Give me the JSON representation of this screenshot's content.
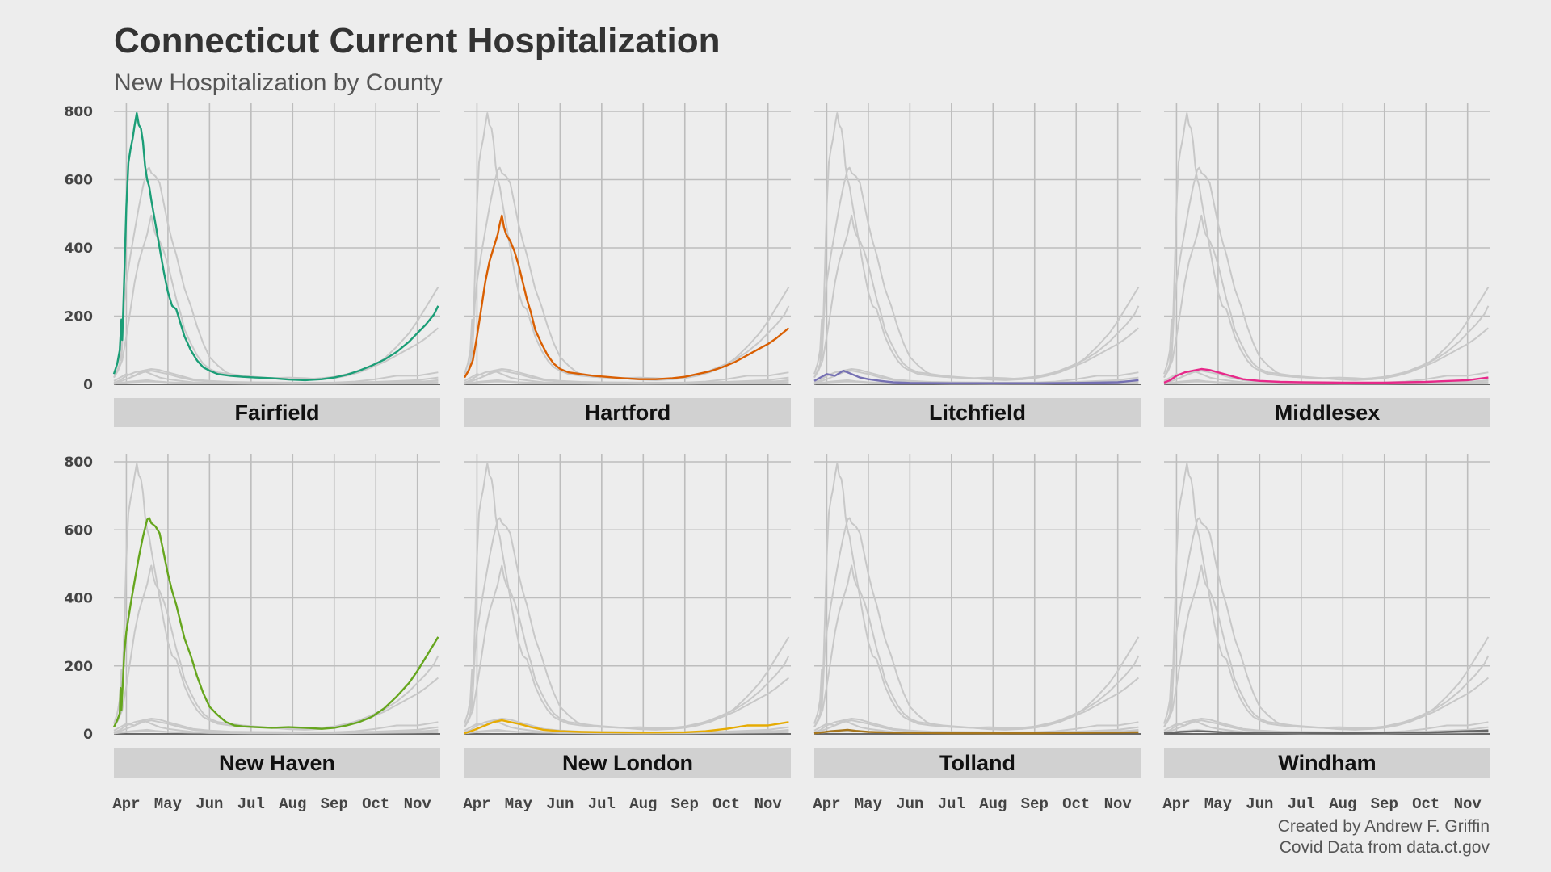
{
  "chart_data": {
    "type": "line",
    "title": "Connecticut Current Hospitalization",
    "subtitle": "New Hospitalization by County",
    "caption_lines": [
      "Created by Andrew F. Griffin",
      "Covid Data from data.ct.gov"
    ],
    "layout": "facet-grid 2 rows x 4 columns; each panel highlights one county in color, other counties in light gray",
    "x_tick_labels": [
      "Apr",
      "May",
      "Jun",
      "Jul",
      "Aug",
      "Sep",
      "Oct",
      "Nov"
    ],
    "x_unit": "month number (Mar=3 ... Nov=11), 2020",
    "x_range": [
      3.7,
      11.55
    ],
    "y_ticks": [
      0,
      200,
      400,
      600,
      800
    ],
    "y_range": [
      0,
      800
    ],
    "grid": true,
    "background_series_color": "#c8c8c8",
    "series": [
      {
        "name": "Fairfield",
        "color": "#1b9e77",
        "points": [
          [
            3.7,
            30
          ],
          [
            3.78,
            60
          ],
          [
            3.84,
            100
          ],
          [
            3.88,
            190
          ],
          [
            3.9,
            130
          ],
          [
            3.95,
            320
          ],
          [
            4.0,
            520
          ],
          [
            4.05,
            650
          ],
          [
            4.1,
            690
          ],
          [
            4.15,
            720
          ],
          [
            4.2,
            760
          ],
          [
            4.25,
            795
          ],
          [
            4.3,
            760
          ],
          [
            4.35,
            750
          ],
          [
            4.4,
            710
          ],
          [
            4.45,
            640
          ],
          [
            4.5,
            600
          ],
          [
            4.55,
            580
          ],
          [
            4.6,
            540
          ],
          [
            4.7,
            470
          ],
          [
            4.8,
            400
          ],
          [
            4.9,
            330
          ],
          [
            5.0,
            270
          ],
          [
            5.1,
            230
          ],
          [
            5.2,
            220
          ],
          [
            5.3,
            180
          ],
          [
            5.4,
            140
          ],
          [
            5.55,
            100
          ],
          [
            5.7,
            70
          ],
          [
            5.85,
            50
          ],
          [
            6.0,
            40
          ],
          [
            6.2,
            30
          ],
          [
            6.5,
            25
          ],
          [
            6.8,
            22
          ],
          [
            7.1,
            20
          ],
          [
            7.5,
            18
          ],
          [
            7.9,
            14
          ],
          [
            8.3,
            12
          ],
          [
            8.7,
            15
          ],
          [
            9.0,
            20
          ],
          [
            9.3,
            28
          ],
          [
            9.6,
            40
          ],
          [
            9.9,
            55
          ],
          [
            10.2,
            72
          ],
          [
            10.5,
            95
          ],
          [
            10.8,
            125
          ],
          [
            11.0,
            150
          ],
          [
            11.2,
            175
          ],
          [
            11.4,
            205
          ],
          [
            11.5,
            230
          ]
        ]
      },
      {
        "name": "Hartford",
        "color": "#d95f02",
        "points": [
          [
            3.7,
            20
          ],
          [
            3.8,
            40
          ],
          [
            3.9,
            70
          ],
          [
            4.0,
            140
          ],
          [
            4.1,
            220
          ],
          [
            4.2,
            300
          ],
          [
            4.3,
            360
          ],
          [
            4.4,
            400
          ],
          [
            4.5,
            440
          ],
          [
            4.55,
            470
          ],
          [
            4.6,
            495
          ],
          [
            4.65,
            460
          ],
          [
            4.7,
            440
          ],
          [
            4.8,
            420
          ],
          [
            4.9,
            390
          ],
          [
            5.0,
            350
          ],
          [
            5.1,
            300
          ],
          [
            5.2,
            250
          ],
          [
            5.3,
            210
          ],
          [
            5.4,
            160
          ],
          [
            5.55,
            120
          ],
          [
            5.7,
            85
          ],
          [
            5.85,
            60
          ],
          [
            6.0,
            45
          ],
          [
            6.2,
            35
          ],
          [
            6.5,
            30
          ],
          [
            6.8,
            25
          ],
          [
            7.1,
            22
          ],
          [
            7.5,
            18
          ],
          [
            7.9,
            15
          ],
          [
            8.3,
            15
          ],
          [
            8.7,
            18
          ],
          [
            9.0,
            22
          ],
          [
            9.3,
            30
          ],
          [
            9.6,
            38
          ],
          [
            9.9,
            50
          ],
          [
            10.2,
            65
          ],
          [
            10.5,
            85
          ],
          [
            10.8,
            105
          ],
          [
            11.0,
            118
          ],
          [
            11.2,
            135
          ],
          [
            11.4,
            155
          ],
          [
            11.5,
            165
          ]
        ]
      },
      {
        "name": "Litchfield",
        "color": "#7570b3",
        "points": [
          [
            3.7,
            10
          ],
          [
            3.85,
            20
          ],
          [
            4.0,
            30
          ],
          [
            4.2,
            25
          ],
          [
            4.4,
            40
          ],
          [
            4.6,
            30
          ],
          [
            4.8,
            20
          ],
          [
            5.0,
            15
          ],
          [
            5.3,
            10
          ],
          [
            5.6,
            6
          ],
          [
            6.0,
            4
          ],
          [
            7.0,
            3
          ],
          [
            8.0,
            3
          ],
          [
            9.0,
            3
          ],
          [
            10.0,
            4
          ],
          [
            11.0,
            6
          ],
          [
            11.5,
            12
          ]
        ]
      },
      {
        "name": "Middlesex",
        "color": "#e7298a",
        "points": [
          [
            3.7,
            5
          ],
          [
            3.85,
            12
          ],
          [
            4.0,
            25
          ],
          [
            4.2,
            35
          ],
          [
            4.4,
            40
          ],
          [
            4.6,
            45
          ],
          [
            4.8,
            42
          ],
          [
            5.0,
            35
          ],
          [
            5.3,
            25
          ],
          [
            5.6,
            15
          ],
          [
            6.0,
            10
          ],
          [
            6.5,
            7
          ],
          [
            7.0,
            6
          ],
          [
            8.0,
            5
          ],
          [
            9.0,
            5
          ],
          [
            10.0,
            7
          ],
          [
            11.0,
            12
          ],
          [
            11.5,
            20
          ]
        ]
      },
      {
        "name": "New Haven",
        "color": "#66a61e",
        "points": [
          [
            3.7,
            20
          ],
          [
            3.78,
            40
          ],
          [
            3.84,
            60
          ],
          [
            3.86,
            135
          ],
          [
            3.88,
            70
          ],
          [
            3.95,
            240
          ],
          [
            4.0,
            300
          ],
          [
            4.1,
            380
          ],
          [
            4.2,
            450
          ],
          [
            4.3,
            520
          ],
          [
            4.4,
            580
          ],
          [
            4.5,
            630
          ],
          [
            4.55,
            635
          ],
          [
            4.6,
            620
          ],
          [
            4.7,
            610
          ],
          [
            4.8,
            590
          ],
          [
            4.9,
            530
          ],
          [
            5.0,
            470
          ],
          [
            5.1,
            420
          ],
          [
            5.2,
            380
          ],
          [
            5.3,
            330
          ],
          [
            5.4,
            280
          ],
          [
            5.55,
            230
          ],
          [
            5.7,
            170
          ],
          [
            5.85,
            120
          ],
          [
            6.0,
            80
          ],
          [
            6.2,
            55
          ],
          [
            6.4,
            35
          ],
          [
            6.6,
            25
          ],
          [
            6.8,
            22
          ],
          [
            7.1,
            20
          ],
          [
            7.5,
            18
          ],
          [
            7.9,
            20
          ],
          [
            8.3,
            18
          ],
          [
            8.7,
            15
          ],
          [
            9.0,
            18
          ],
          [
            9.3,
            25
          ],
          [
            9.6,
            35
          ],
          [
            9.9,
            50
          ],
          [
            10.2,
            75
          ],
          [
            10.5,
            110
          ],
          [
            10.8,
            150
          ],
          [
            11.0,
            185
          ],
          [
            11.2,
            225
          ],
          [
            11.4,
            265
          ],
          [
            11.5,
            285
          ]
        ]
      },
      {
        "name": "New London",
        "color": "#e6ab02",
        "points": [
          [
            3.7,
            2
          ],
          [
            3.85,
            8
          ],
          [
            4.0,
            15
          ],
          [
            4.2,
            25
          ],
          [
            4.4,
            35
          ],
          [
            4.6,
            40
          ],
          [
            4.8,
            35
          ],
          [
            5.0,
            30
          ],
          [
            5.3,
            20
          ],
          [
            5.6,
            12
          ],
          [
            6.0,
            8
          ],
          [
            6.5,
            6
          ],
          [
            7.0,
            5
          ],
          [
            8.0,
            4
          ],
          [
            9.0,
            5
          ],
          [
            9.5,
            8
          ],
          [
            10.0,
            15
          ],
          [
            10.5,
            25
          ],
          [
            11.0,
            25
          ],
          [
            11.5,
            35
          ]
        ]
      },
      {
        "name": "Tolland",
        "color": "#a6761d",
        "points": [
          [
            3.7,
            2
          ],
          [
            3.9,
            5
          ],
          [
            4.1,
            8
          ],
          [
            4.3,
            10
          ],
          [
            4.5,
            12
          ],
          [
            4.7,
            9
          ],
          [
            5.0,
            6
          ],
          [
            5.5,
            4
          ],
          [
            6.0,
            3
          ],
          [
            7.0,
            2
          ],
          [
            8.0,
            2
          ],
          [
            9.0,
            2
          ],
          [
            10.0,
            3
          ],
          [
            11.0,
            4
          ],
          [
            11.5,
            5
          ]
        ]
      },
      {
        "name": "Windham",
        "color": "#666666",
        "points": [
          [
            3.7,
            2
          ],
          [
            3.9,
            4
          ],
          [
            4.1,
            6
          ],
          [
            4.3,
            7
          ],
          [
            4.5,
            8
          ],
          [
            4.8,
            7
          ],
          [
            5.1,
            5
          ],
          [
            5.5,
            4
          ],
          [
            6.0,
            3
          ],
          [
            7.0,
            3
          ],
          [
            8.0,
            2
          ],
          [
            9.0,
            3
          ],
          [
            10.0,
            4
          ],
          [
            10.5,
            6
          ],
          [
            11.0,
            8
          ],
          [
            11.5,
            10
          ]
        ]
      }
    ]
  }
}
